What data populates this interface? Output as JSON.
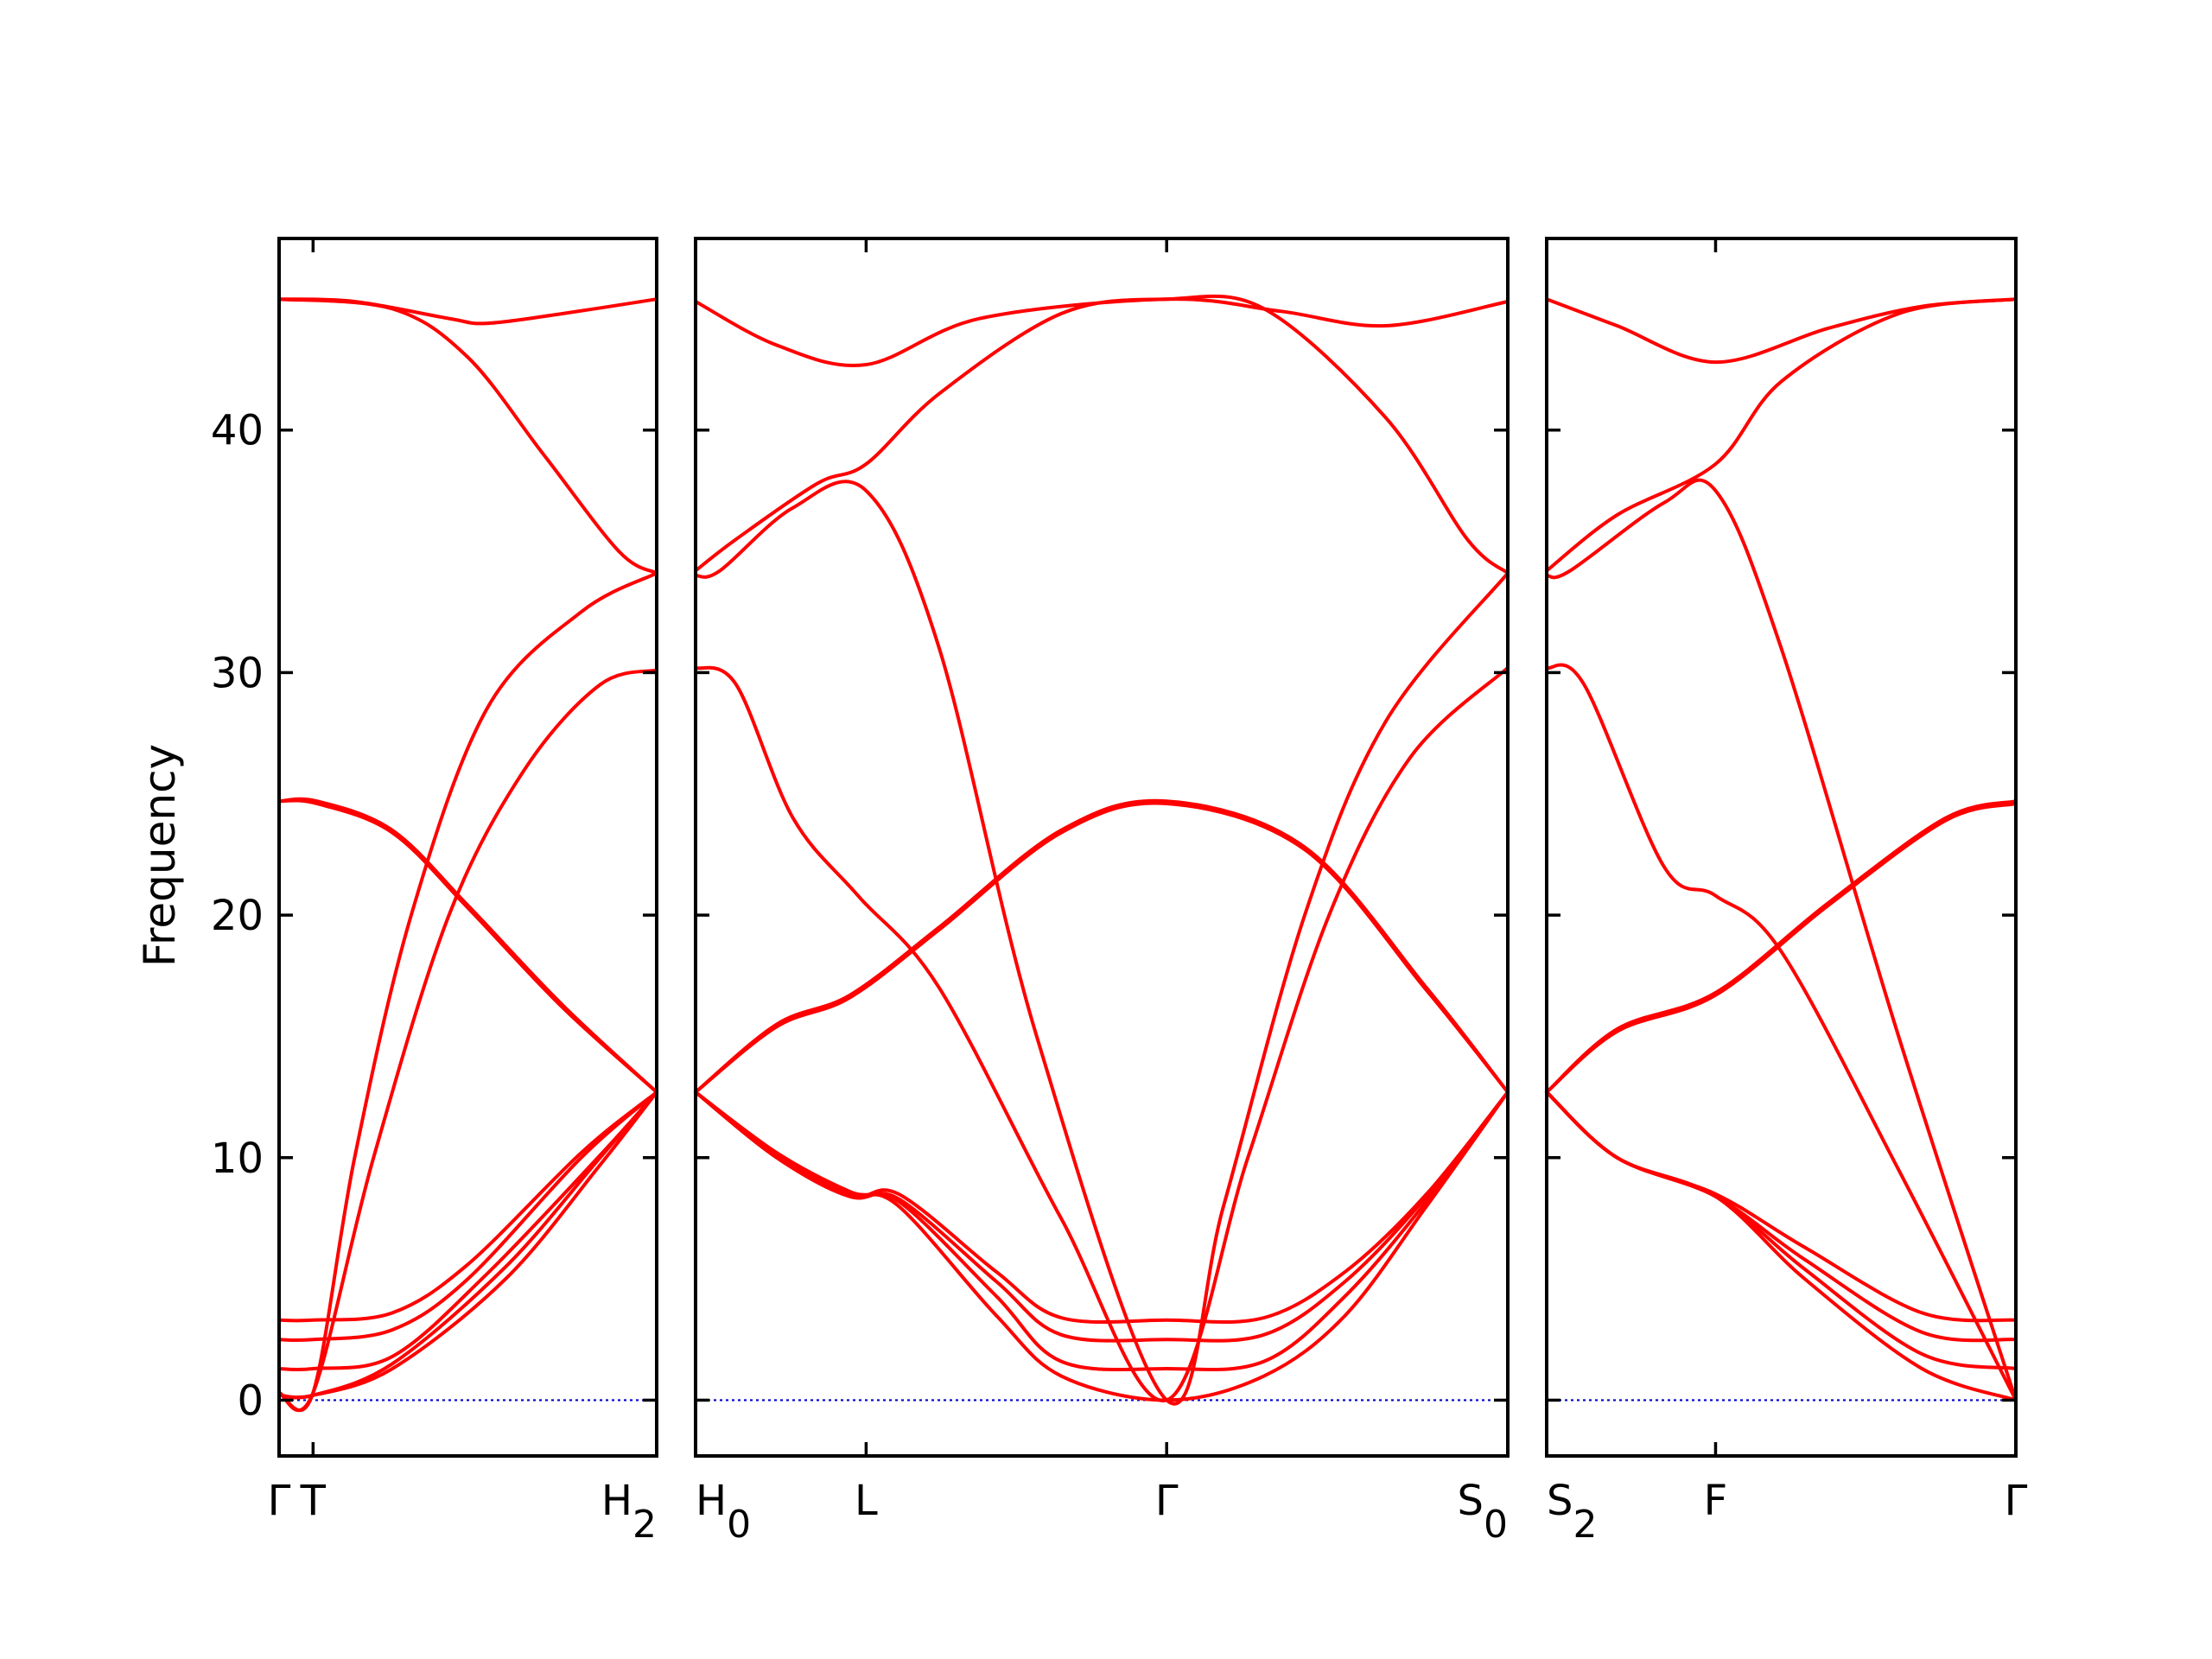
{
  "chart_data": {
    "type": "line",
    "title": "",
    "xlabel": "",
    "ylabel": "Frequency",
    "ylim": [
      -2.3,
      47.9
    ],
    "y_ticks": [
      0,
      10,
      20,
      30,
      40
    ],
    "grid": false,
    "zero_line_color": "#0000cc",
    "band_color": "#ff0000",
    "panels": [
      {
        "x_ticks": [
          {
            "label": "Γ",
            "x": 0.0
          },
          {
            "label": "T",
            "x": 0.09
          },
          {
            "label": "H",
            "sub": "2",
            "x": 1.0
          }
        ],
        "bands": [
          [
            [
              0,
              0.2
            ],
            [
              0.09,
              0.2
            ],
            [
              0.3,
              1.5
            ],
            [
              0.6,
              5.5
            ],
            [
              0.85,
              10
            ],
            [
              1,
              12.7
            ]
          ],
          [
            [
              0,
              0.2
            ],
            [
              0.09,
              0.2
            ],
            [
              0.3,
              1.3
            ],
            [
              0.6,
              5.0
            ],
            [
              0.85,
              9.7
            ],
            [
              1,
              12.7
            ]
          ],
          [
            [
              0,
              1.3
            ],
            [
              0.09,
              1.3
            ],
            [
              0.3,
              1.8
            ],
            [
              0.55,
              5.2
            ],
            [
              0.85,
              10.1
            ],
            [
              1,
              12.7
            ]
          ],
          [
            [
              0,
              2.5
            ],
            [
              0.09,
              2.5
            ],
            [
              0.3,
              2.9
            ],
            [
              0.5,
              5.0
            ],
            [
              0.8,
              10.0
            ],
            [
              1,
              12.7
            ]
          ],
          [
            [
              0,
              3.3
            ],
            [
              0.09,
              3.3
            ],
            [
              0.3,
              3.6
            ],
            [
              0.5,
              5.6
            ],
            [
              0.8,
              10.2
            ],
            [
              1,
              12.7
            ]
          ],
          [
            [
              0,
              0.3
            ],
            [
              0.09,
              0.3
            ],
            [
              0.25,
              10
            ],
            [
              0.45,
              20
            ],
            [
              0.65,
              26
            ],
            [
              0.85,
              29.5
            ],
            [
              1,
              30.1
            ]
          ],
          [
            [
              0,
              0.3
            ],
            [
              0.09,
              0.3
            ],
            [
              0.2,
              10
            ],
            [
              0.35,
              20
            ],
            [
              0.55,
              28.5
            ],
            [
              0.8,
              32.5
            ],
            [
              1,
              34.1
            ]
          ],
          [
            [
              0,
              24.7
            ],
            [
              0.1,
              24.7
            ],
            [
              0.3,
              23.5
            ],
            [
              0.5,
              20.4
            ],
            [
              0.75,
              16.3
            ],
            [
              1,
              12.7
            ]
          ],
          [
            [
              0,
              24.7
            ],
            [
              0.1,
              24.6
            ],
            [
              0.3,
              23.4
            ],
            [
              0.5,
              20.3
            ],
            [
              0.75,
              16.2
            ],
            [
              1,
              12.7
            ]
          ],
          [
            [
              0,
              45.4
            ],
            [
              0.2,
              45.3
            ],
            [
              0.45,
              44.6
            ],
            [
              0.55,
              44.4
            ],
            [
              0.75,
              44.8
            ],
            [
              1,
              45.4
            ]
          ],
          [
            [
              0,
              45.4
            ],
            [
              0.3,
              45.0
            ],
            [
              0.5,
              43.0
            ],
            [
              0.7,
              39.0
            ],
            [
              0.9,
              35.0
            ],
            [
              1,
              34.1
            ]
          ]
        ]
      },
      {
        "x_ticks": [
          {
            "label": "H",
            "sub": "0",
            "x": 0.0
          },
          {
            "label": "L",
            "x": 0.21
          },
          {
            "label": "Γ",
            "x": 0.58
          },
          {
            "label": "S",
            "sub": "0",
            "x": 1.0
          }
        ],
        "bands": [
          [
            [
              0,
              12.7
            ],
            [
              0.1,
              10.2
            ],
            [
              0.19,
              8.6
            ],
            [
              0.25,
              8.0
            ],
            [
              0.37,
              3.5
            ],
            [
              0.45,
              1.0
            ],
            [
              0.58,
              0
            ],
            [
              0.7,
              1.0
            ],
            [
              0.8,
              3.5
            ],
            [
              0.9,
              8.0
            ],
            [
              1,
              12.7
            ]
          ],
          [
            [
              0,
              12.7
            ],
            [
              0.1,
              10.1
            ],
            [
              0.19,
              8.5
            ],
            [
              0.25,
              8.2
            ],
            [
              0.37,
              4.3
            ],
            [
              0.45,
              1.6
            ],
            [
              0.58,
              1.3
            ],
            [
              0.7,
              1.6
            ],
            [
              0.8,
              4.3
            ],
            [
              0.9,
              8.2
            ],
            [
              1,
              12.7
            ]
          ],
          [
            [
              0,
              12.7
            ],
            [
              0.1,
              10.0
            ],
            [
              0.19,
              8.4
            ],
            [
              0.25,
              8.3
            ],
            [
              0.37,
              4.9
            ],
            [
              0.45,
              2.7
            ],
            [
              0.58,
              2.5
            ],
            [
              0.7,
              2.7
            ],
            [
              0.8,
              4.9
            ],
            [
              0.9,
              8.4
            ],
            [
              1,
              12.7
            ]
          ],
          [
            [
              0,
              12.7
            ],
            [
              0.1,
              10.0
            ],
            [
              0.19,
              8.4
            ],
            [
              0.25,
              8.5
            ],
            [
              0.37,
              5.3
            ],
            [
              0.45,
              3.4
            ],
            [
              0.58,
              3.3
            ],
            [
              0.7,
              3.4
            ],
            [
              0.8,
              5.3
            ],
            [
              0.9,
              8.5
            ],
            [
              1,
              12.7
            ]
          ],
          [
            [
              0,
              12.7
            ],
            [
              0.1,
              15.5
            ],
            [
              0.19,
              16.7
            ],
            [
              0.3,
              19.5
            ],
            [
              0.45,
              23.5
            ],
            [
              0.58,
              24.7
            ],
            [
              0.75,
              22.8
            ],
            [
              0.9,
              17.0
            ],
            [
              1,
              12.7
            ]
          ],
          [
            [
              0,
              12.7
            ],
            [
              0.1,
              15.4
            ],
            [
              0.19,
              16.6
            ],
            [
              0.3,
              19.4
            ],
            [
              0.45,
              23.4
            ],
            [
              0.58,
              24.6
            ],
            [
              0.75,
              22.7
            ],
            [
              0.9,
              16.9
            ],
            [
              1,
              12.7
            ]
          ],
          [
            [
              0,
              30.2
            ],
            [
              0.05,
              29.5
            ],
            [
              0.12,
              24.0
            ],
            [
              0.2,
              20.8
            ],
            [
              0.3,
              17.0
            ],
            [
              0.45,
              7.5
            ],
            [
              0.58,
              0
            ],
            [
              0.68,
              10
            ],
            [
              0.78,
              20
            ],
            [
              0.88,
              26.5
            ],
            [
              1,
              30.2
            ]
          ],
          [
            [
              0,
              34.0
            ],
            [
              0.03,
              34.2
            ],
            [
              0.12,
              36.8
            ],
            [
              0.21,
              37.5
            ],
            [
              0.3,
              31.0
            ],
            [
              0.42,
              15.0
            ],
            [
              0.58,
              0
            ],
            [
              0.65,
              8
            ],
            [
              0.75,
              20
            ],
            [
              0.85,
              28
            ],
            [
              1,
              34.1
            ]
          ],
          [
            [
              0,
              34.2
            ],
            [
              0.05,
              35.5
            ],
            [
              0.15,
              37.8
            ],
            [
              0.21,
              38.6
            ],
            [
              0.3,
              41.5
            ],
            [
              0.45,
              44.8
            ],
            [
              0.58,
              45.4
            ],
            [
              0.7,
              45.0
            ],
            [
              0.85,
              40.5
            ],
            [
              0.95,
              35.5
            ],
            [
              1,
              34.1
            ]
          ],
          [
            [
              0,
              45.3
            ],
            [
              0.1,
              43.5
            ],
            [
              0.21,
              42.7
            ],
            [
              0.35,
              44.6
            ],
            [
              0.58,
              45.4
            ],
            [
              0.72,
              44.9
            ],
            [
              0.85,
              44.3
            ],
            [
              1,
              45.3
            ]
          ]
        ]
      },
      {
        "x_ticks": [
          {
            "label": "S",
            "sub": "2",
            "x": 0.0
          },
          {
            "label": "F",
            "x": 0.36
          },
          {
            "label": "Γ",
            "x": 1.0
          }
        ],
        "bands": [
          [
            [
              0,
              12.7
            ],
            [
              0.15,
              10.0
            ],
            [
              0.36,
              8.4
            ],
            [
              0.55,
              5.0
            ],
            [
              0.8,
              1.3
            ],
            [
              1,
              0
            ]
          ],
          [
            [
              0,
              12.7
            ],
            [
              0.15,
              10.0
            ],
            [
              0.36,
              8.4
            ],
            [
              0.55,
              5.4
            ],
            [
              0.8,
              1.9
            ],
            [
              1,
              1.3
            ]
          ],
          [
            [
              0,
              12.7
            ],
            [
              0.15,
              10.0
            ],
            [
              0.36,
              8.4
            ],
            [
              0.55,
              5.8
            ],
            [
              0.8,
              2.8
            ],
            [
              1,
              2.5
            ]
          ],
          [
            [
              0,
              12.7
            ],
            [
              0.15,
              10.0
            ],
            [
              0.36,
              8.5
            ],
            [
              0.55,
              6.3
            ],
            [
              0.8,
              3.6
            ],
            [
              1,
              3.3
            ]
          ],
          [
            [
              0,
              12.7
            ],
            [
              0.15,
              15.3
            ],
            [
              0.36,
              16.8
            ],
            [
              0.6,
              20.5
            ],
            [
              0.85,
              24.0
            ],
            [
              1,
              24.7
            ]
          ],
          [
            [
              0,
              12.7
            ],
            [
              0.15,
              15.2
            ],
            [
              0.36,
              16.7
            ],
            [
              0.6,
              20.4
            ],
            [
              0.85,
              23.9
            ],
            [
              1,
              24.6
            ]
          ],
          [
            [
              0,
              30.2
            ],
            [
              0.08,
              29.5
            ],
            [
              0.25,
              22.0
            ],
            [
              0.36,
              20.8
            ],
            [
              0.5,
              18.5
            ],
            [
              0.75,
              9.5
            ],
            [
              1,
              0
            ]
          ],
          [
            [
              0,
              34.0
            ],
            [
              0.05,
              34.2
            ],
            [
              0.25,
              37.0
            ],
            [
              0.36,
              37.5
            ],
            [
              0.5,
              31.0
            ],
            [
              0.75,
              15.0
            ],
            [
              1,
              0
            ]
          ],
          [
            [
              0,
              34.2
            ],
            [
              0.15,
              36.5
            ],
            [
              0.36,
              38.6
            ],
            [
              0.5,
              42.0
            ],
            [
              0.75,
              44.8
            ],
            [
              1,
              45.4
            ]
          ],
          [
            [
              0,
              45.4
            ],
            [
              0.15,
              44.3
            ],
            [
              0.36,
              42.8
            ],
            [
              0.6,
              44.2
            ],
            [
              0.8,
              45.1
            ],
            [
              1,
              45.4
            ]
          ]
        ]
      }
    ]
  }
}
